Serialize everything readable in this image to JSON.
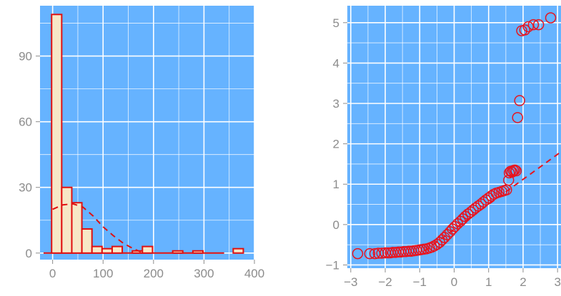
{
  "colors": {
    "panel_background": "#66b3ff",
    "grid": "#ffffff",
    "bar_fill": "#f7e7c6",
    "accent_red": "#e01010",
    "tick_text": "#8c8c8c"
  },
  "chart_data": [
    {
      "type": "bar",
      "subtype": "histogram",
      "title": "",
      "xlabel": "",
      "ylabel": "",
      "xlim": [
        -25,
        400
      ],
      "ylim": [
        -3,
        113
      ],
      "xticks": [
        0,
        100,
        200,
        300,
        400
      ],
      "yticks": [
        0,
        30,
        60,
        90
      ],
      "grid": true,
      "bin_width": 20,
      "bins": [
        {
          "x0": -2,
          "x1": 18,
          "count": 109
        },
        {
          "x0": 18,
          "x1": 38,
          "count": 30
        },
        {
          "x0": 38,
          "x1": 58,
          "count": 23
        },
        {
          "x0": 58,
          "x1": 78,
          "count": 11
        },
        {
          "x0": 78,
          "x1": 98,
          "count": 3
        },
        {
          "x0": 98,
          "x1": 118,
          "count": 2
        },
        {
          "x0": 118,
          "x1": 138,
          "count": 3
        },
        {
          "x0": 138,
          "x1": 158,
          "count": 0
        },
        {
          "x0": 158,
          "x1": 178,
          "count": 1
        },
        {
          "x0": 178,
          "x1": 198,
          "count": 3
        },
        {
          "x0": 198,
          "x1": 218,
          "count": 0
        },
        {
          "x0": 218,
          "x1": 238,
          "count": 0
        },
        {
          "x0": 238,
          "x1": 258,
          "count": 1
        },
        {
          "x0": 258,
          "x1": 278,
          "count": 0
        },
        {
          "x0": 278,
          "x1": 298,
          "count": 1
        },
        {
          "x0": 298,
          "x1": 318,
          "count": 0
        },
        {
          "x0": 318,
          "x1": 338,
          "count": 0
        },
        {
          "x0": 338,
          "x1": 358,
          "count": 0
        },
        {
          "x0": 358,
          "x1": 378,
          "count": 2
        }
      ],
      "density_curve": {
        "style": "dashed",
        "x": [
          0,
          20,
          40,
          60,
          80,
          100,
          120,
          140,
          160,
          180
        ],
        "y": [
          20,
          22,
          22.5,
          21,
          17,
          12,
          8,
          4.5,
          2,
          0
        ]
      }
    },
    {
      "type": "scatter",
      "subtype": "qq-plot",
      "title": "",
      "xlabel": "",
      "ylabel": "",
      "xlim": [
        -3.1,
        3.1
      ],
      "ylim": [
        -1.08,
        5.42
      ],
      "xticks": [
        -3,
        -2,
        -1,
        0,
        1,
        2,
        3
      ],
      "yticks": [
        -1,
        0,
        1,
        2,
        3,
        4,
        5
      ],
      "grid": true,
      "reference_line": {
        "style": "dashed",
        "slope": 0.62,
        "intercept": -0.12
      },
      "points_x": [
        -2.8,
        -2.45,
        -2.3,
        -2.2,
        -2.1,
        -2.0,
        -1.92,
        -1.85,
        -1.78,
        -1.7,
        -1.62,
        -1.55,
        -1.47,
        -1.4,
        -1.32,
        -1.25,
        -1.17,
        -1.1,
        -1.02,
        -0.95,
        -0.88,
        -0.8,
        -0.72,
        -0.65,
        -0.58,
        -0.5,
        -0.42,
        -0.35,
        -0.28,
        -0.2,
        -0.12,
        -0.05,
        0.02,
        0.1,
        0.18,
        0.25,
        0.32,
        0.4,
        0.48,
        0.55,
        0.62,
        0.7,
        0.78,
        0.85,
        0.92,
        1.0,
        1.08,
        1.15,
        1.22,
        1.3,
        1.38,
        1.45,
        1.52,
        1.58,
        1.6,
        1.64,
        1.68,
        1.72,
        1.76,
        1.8,
        1.84,
        1.9,
        1.96,
        2.05,
        2.15,
        2.3,
        2.45,
        2.8
      ],
      "points_y": [
        -0.72,
        -0.72,
        -0.72,
        -0.71,
        -0.71,
        -0.7,
        -0.7,
        -0.7,
        -0.69,
        -0.69,
        -0.68,
        -0.68,
        -0.67,
        -0.67,
        -0.66,
        -0.66,
        -0.65,
        -0.64,
        -0.63,
        -0.62,
        -0.61,
        -0.6,
        -0.58,
        -0.56,
        -0.53,
        -0.49,
        -0.44,
        -0.38,
        -0.32,
        -0.25,
        -0.18,
        -0.11,
        -0.05,
        0.02,
        0.08,
        0.14,
        0.2,
        0.26,
        0.31,
        0.36,
        0.41,
        0.46,
        0.51,
        0.56,
        0.61,
        0.66,
        0.71,
        0.75,
        0.78,
        0.8,
        0.82,
        0.84,
        0.86,
        1.1,
        1.28,
        1.32,
        1.3,
        1.34,
        1.35,
        1.33,
        2.65,
        3.07,
        4.8,
        4.82,
        4.9,
        4.95,
        4.95,
        5.12
      ]
    }
  ]
}
